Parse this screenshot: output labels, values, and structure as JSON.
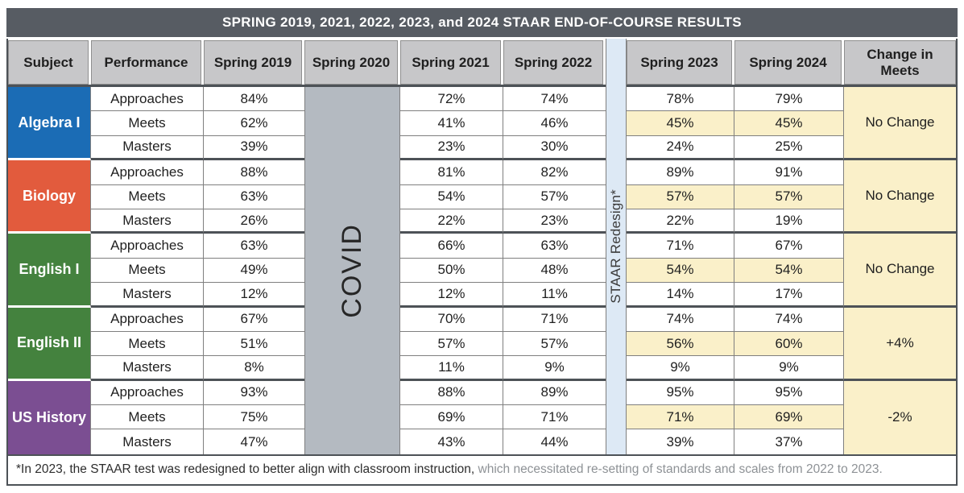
{
  "title": "SPRING 2019, 2021, 2022, 2023, and 2024 STAAR END-OF-COURSE RESULTS",
  "header": {
    "columns": [
      "Subject",
      "Performance",
      "Spring 2019",
      "Spring 2020",
      "Spring 2021",
      "Spring 2022",
      "Spring 2023",
      "Spring 2024",
      "Change in Meets"
    ]
  },
  "covid_label": "COVID",
  "redesign_label": "STAAR Redesign*",
  "performance_levels": [
    "Approaches",
    "Meets",
    "Masters"
  ],
  "subjects": [
    {
      "name": "Algebra I",
      "change": "No Change",
      "rows": [
        {
          "performance": "Approaches",
          "spring_2019": "84%",
          "spring_2021": "72%",
          "spring_2022": "74%",
          "spring_2023": "78%",
          "spring_2024": "79%"
        },
        {
          "performance": "Meets",
          "spring_2019": "62%",
          "spring_2021": "41%",
          "spring_2022": "46%",
          "spring_2023": "45%",
          "spring_2024": "45%"
        },
        {
          "performance": "Masters",
          "spring_2019": "39%",
          "spring_2021": "23%",
          "spring_2022": "30%",
          "spring_2023": "24%",
          "spring_2024": "25%"
        }
      ]
    },
    {
      "name": "Biology",
      "change": "No Change",
      "rows": [
        {
          "performance": "Approaches",
          "spring_2019": "88%",
          "spring_2021": "81%",
          "spring_2022": "82%",
          "spring_2023": "89%",
          "spring_2024": "91%"
        },
        {
          "performance": "Meets",
          "spring_2019": "63%",
          "spring_2021": "54%",
          "spring_2022": "57%",
          "spring_2023": "57%",
          "spring_2024": "57%"
        },
        {
          "performance": "Masters",
          "spring_2019": "26%",
          "spring_2021": "22%",
          "spring_2022": "23%",
          "spring_2023": "22%",
          "spring_2024": "19%"
        }
      ]
    },
    {
      "name": "English I",
      "change": "No Change",
      "rows": [
        {
          "performance": "Approaches",
          "spring_2019": "63%",
          "spring_2021": "66%",
          "spring_2022": "63%",
          "spring_2023": "71%",
          "spring_2024": "67%"
        },
        {
          "performance": "Meets",
          "spring_2019": "49%",
          "spring_2021": "50%",
          "spring_2022": "48%",
          "spring_2023": "54%",
          "spring_2024": "54%"
        },
        {
          "performance": "Masters",
          "spring_2019": "12%",
          "spring_2021": "12%",
          "spring_2022": "11%",
          "spring_2023": "14%",
          "spring_2024": "17%"
        }
      ]
    },
    {
      "name": "English II",
      "change": "+4%",
      "rows": [
        {
          "performance": "Approaches",
          "spring_2019": "67%",
          "spring_2021": "70%",
          "spring_2022": "71%",
          "spring_2023": "74%",
          "spring_2024": "74%"
        },
        {
          "performance": "Meets",
          "spring_2019": "51%",
          "spring_2021": "57%",
          "spring_2022": "57%",
          "spring_2023": "56%",
          "spring_2024": "60%"
        },
        {
          "performance": "Masters",
          "spring_2019": "8%",
          "spring_2021": "11%",
          "spring_2022": "9%",
          "spring_2023": "9%",
          "spring_2024": "9%"
        }
      ]
    },
    {
      "name": "US History",
      "change": "-2%",
      "rows": [
        {
          "performance": "Approaches",
          "spring_2019": "93%",
          "spring_2021": "88%",
          "spring_2022": "89%",
          "spring_2023": "95%",
          "spring_2024": "95%"
        },
        {
          "performance": "Meets",
          "spring_2019": "75%",
          "spring_2021": "69%",
          "spring_2022": "71%",
          "spring_2023": "71%",
          "spring_2024": "69%"
        },
        {
          "performance": "Masters",
          "spring_2019": "47%",
          "spring_2021": "43%",
          "spring_2022": "44%",
          "spring_2023": "39%",
          "spring_2024": "37%"
        }
      ]
    }
  ],
  "footnote": {
    "part1": "*In 2023, the STAAR test was redesigned to better align with classroom instruction,",
    "part2": " which necessitated re-setting of standards and scales from 2022 to 2023."
  },
  "colors": {
    "title_bar": "#575c63",
    "header_gray": "#c7c7c9",
    "algebra_blue": "#1b6cb5",
    "biology_orange": "#e25b3d",
    "english_green": "#44823e",
    "us_history_purple": "#7b4e92",
    "highlight_yellow": "#faf0c9",
    "covid_gray": "#b4bac1",
    "redesign_blue": "#dde9f5",
    "group_border": "#4d5257"
  },
  "chart_data": {
    "type": "table",
    "title": "SPRING 2019, 2021, 2022, 2023, and 2024 STAAR END-OF-COURSE RESULTS",
    "columns": [
      "Subject",
      "Performance",
      "Spring 2019",
      "Spring 2020",
      "Spring 2021",
      "Spring 2022",
      "Spring 2023",
      "Spring 2024",
      "Change in Meets"
    ],
    "notes": [
      "Spring 2020 column replaced by vertical COVID band (no results)",
      "Vertical band labeled STAAR Redesign* separates Spring 2022 and Spring 2023",
      "Meets rows for Spring 2023 and Spring 2024 are highlighted yellow"
    ],
    "rows": [
      [
        "Algebra I",
        "Approaches",
        84,
        null,
        72,
        74,
        78,
        79,
        "No Change"
      ],
      [
        "Algebra I",
        "Meets",
        62,
        null,
        41,
        46,
        45,
        45,
        "No Change"
      ],
      [
        "Algebra I",
        "Masters",
        39,
        null,
        23,
        30,
        24,
        25,
        "No Change"
      ],
      [
        "Biology",
        "Approaches",
        88,
        null,
        81,
        82,
        89,
        91,
        "No Change"
      ],
      [
        "Biology",
        "Meets",
        63,
        null,
        54,
        57,
        57,
        57,
        "No Change"
      ],
      [
        "Biology",
        "Masters",
        26,
        null,
        22,
        23,
        22,
        19,
        "No Change"
      ],
      [
        "English I",
        "Approaches",
        63,
        null,
        66,
        63,
        71,
        67,
        "No Change"
      ],
      [
        "English I",
        "Meets",
        49,
        null,
        50,
        48,
        54,
        54,
        "No Change"
      ],
      [
        "English I",
        "Masters",
        12,
        null,
        12,
        11,
        14,
        17,
        "No Change"
      ],
      [
        "English II",
        "Approaches",
        67,
        null,
        70,
        71,
        74,
        74,
        "+4%"
      ],
      [
        "English II",
        "Meets",
        51,
        null,
        57,
        57,
        56,
        60,
        "+4%"
      ],
      [
        "English II",
        "Masters",
        8,
        null,
        11,
        9,
        9,
        9,
        "+4%"
      ],
      [
        "US History",
        "Approaches",
        93,
        null,
        88,
        89,
        95,
        95,
        "-2%"
      ],
      [
        "US History",
        "Meets",
        75,
        null,
        69,
        71,
        71,
        69,
        "-2%"
      ],
      [
        "US History",
        "Masters",
        47,
        null,
        43,
        44,
        39,
        37,
        "-2%"
      ]
    ]
  }
}
